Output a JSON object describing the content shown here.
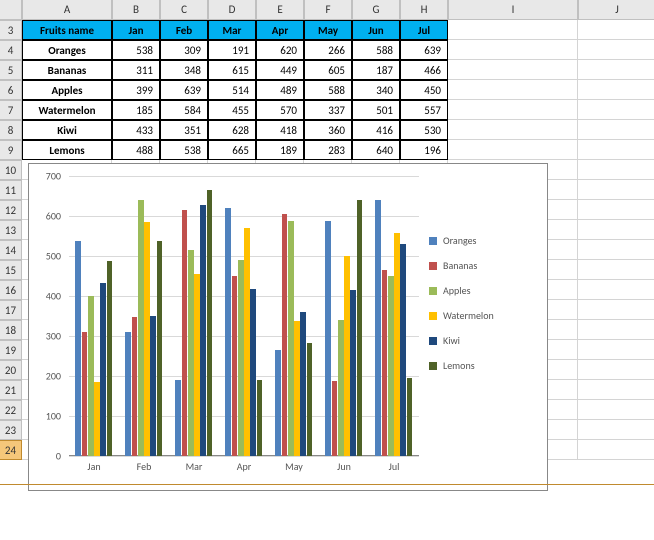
{
  "columns": [
    "",
    "A",
    "B",
    "C",
    "D",
    "E",
    "F",
    "G",
    "H",
    "I",
    "J"
  ],
  "rows": [
    "3",
    "4",
    "5",
    "6",
    "7",
    "8",
    "9",
    "10",
    "11",
    "12",
    "13",
    "14",
    "15",
    "16",
    "17",
    "18",
    "19",
    "20",
    "21",
    "22",
    "23",
    "24"
  ],
  "table": {
    "header": [
      "Fruits name",
      "Jan",
      "Feb",
      "Mar",
      "Apr",
      "May",
      "Jun",
      "Jul"
    ],
    "names": [
      "Oranges",
      "Bananas",
      "Apples",
      "Watermelon",
      "Kiwi",
      "Lemons"
    ],
    "data": [
      [
        538,
        309,
        191,
        620,
        266,
        588,
        639
      ],
      [
        311,
        348,
        615,
        449,
        605,
        187,
        466
      ],
      [
        399,
        639,
        514,
        489,
        588,
        340,
        450
      ],
      [
        185,
        584,
        455,
        570,
        337,
        501,
        557
      ],
      [
        433,
        351,
        628,
        418,
        360,
        416,
        530
      ],
      [
        488,
        538,
        665,
        189,
        283,
        640,
        196
      ]
    ],
    "header_bg": "#00b0f0"
  },
  "chart": {
    "type": "bar",
    "categories": [
      "Jan",
      "Feb",
      "Mar",
      "Apr",
      "May",
      "Jun",
      "Jul"
    ],
    "series": [
      {
        "name": "Oranges",
        "color": "#4f81bd",
        "values": [
          538,
          309,
          191,
          620,
          266,
          588,
          639
        ]
      },
      {
        "name": "Bananas",
        "color": "#c0504d",
        "values": [
          311,
          348,
          615,
          449,
          605,
          187,
          466
        ]
      },
      {
        "name": "Apples",
        "color": "#9bbb59",
        "values": [
          399,
          639,
          514,
          489,
          588,
          340,
          450
        ]
      },
      {
        "name": "Watermelon",
        "color": "#ffc000",
        "values": [
          185,
          584,
          455,
          570,
          337,
          501,
          557
        ]
      },
      {
        "name": "Kiwi",
        "color": "#1f497d",
        "values": [
          433,
          351,
          628,
          418,
          360,
          416,
          530
        ]
      },
      {
        "name": "Lemons",
        "color": "#4f6228",
        "values": [
          488,
          538,
          665,
          189,
          283,
          640,
          196
        ]
      }
    ],
    "ylim": [
      0,
      700
    ],
    "ytick_step": 100,
    "grid_color": "#d9d9d9",
    "background_color": "#ffffff",
    "bar_group_gap": 0.25,
    "label_fontsize": 10
  }
}
